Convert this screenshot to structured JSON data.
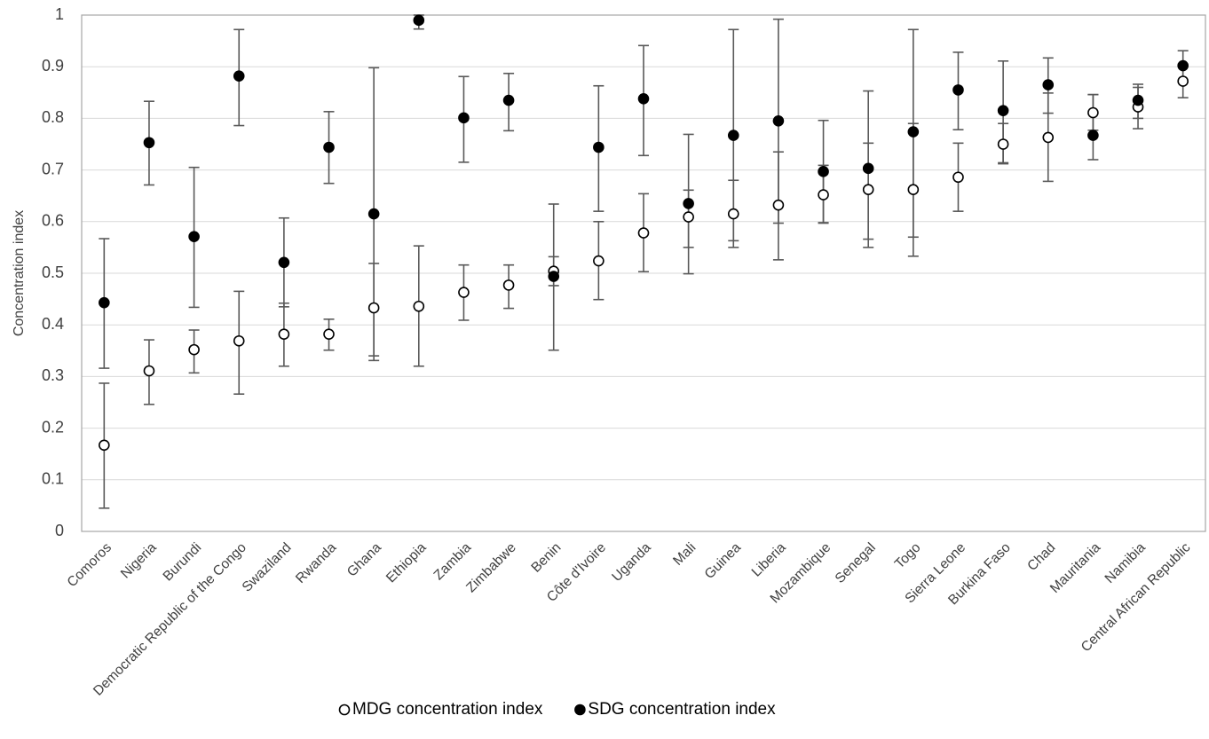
{
  "chart_data": {
    "type": "errorbar-dot",
    "y_label": "Concentration index",
    "categories": [
      "Comoros",
      "Nigeria",
      "Burundi",
      "Democratic Republic of the Congo",
      "Swaziland",
      "Rwanda",
      "Ghana",
      "Ethiopia",
      "Zambia",
      "Zimbabwe",
      "Benin",
      "Côte d'Ivoire",
      "Uganda",
      "Mali",
      "Guinea",
      "Liberia",
      "Mozambique",
      "Senegal",
      "Togo",
      "Sierra Leone",
      "Burkina Faso",
      "Chad",
      "Mauritania",
      "Namibia",
      "Central African Republic"
    ],
    "series": [
      {
        "name": "MDG concentration index",
        "color": "#000000",
        "marker_fill": "#ffffff",
        "values": [
          0.167,
          0.311,
          0.352,
          0.369,
          0.382,
          0.382,
          0.433,
          0.436,
          0.463,
          0.477,
          0.504,
          0.524,
          0.578,
          0.609,
          0.615,
          0.632,
          0.652,
          0.662,
          0.662,
          0.686,
          0.75,
          0.763,
          0.811,
          0.822,
          0.872
        ],
        "lower": [
          0.045,
          0.246,
          0.307,
          0.266,
          0.32,
          0.351,
          0.34,
          0.32,
          0.409,
          0.432,
          0.476,
          0.449,
          0.503,
          0.55,
          0.55,
          0.597,
          0.597,
          0.566,
          0.57,
          0.62,
          0.714,
          0.678,
          0.777,
          0.78,
          0.84
        ],
        "upper": [
          0.287,
          0.371,
          0.39,
          0.465,
          0.442,
          0.411,
          0.519,
          0.553,
          0.516,
          0.516,
          0.532,
          0.6,
          0.654,
          0.661,
          0.68,
          0.735,
          0.709,
          0.752,
          0.79,
          0.752,
          0.79,
          0.849,
          0.846,
          0.86,
          0.905
        ]
      },
      {
        "name": "SDG concentration index",
        "color": "#000000",
        "marker_fill": "#000000",
        "values": [
          0.443,
          0.753,
          0.571,
          0.882,
          0.521,
          0.744,
          0.615,
          0.99,
          0.801,
          0.835,
          0.494,
          0.744,
          0.838,
          0.635,
          0.767,
          0.795,
          0.697,
          0.703,
          0.774,
          0.855,
          0.815,
          0.865,
          0.767,
          0.835,
          0.902
        ],
        "lower": [
          0.316,
          0.671,
          0.434,
          0.786,
          0.435,
          0.674,
          0.331,
          0.973,
          0.715,
          0.776,
          0.351,
          0.62,
          0.728,
          0.499,
          0.563,
          0.526,
          0.598,
          0.55,
          0.533,
          0.778,
          0.712,
          0.81,
          0.72,
          0.8,
          0.87
        ],
        "upper": [
          0.567,
          0.833,
          0.705,
          0.972,
          0.607,
          0.813,
          0.898,
          1.0,
          0.881,
          0.887,
          0.634,
          0.863,
          0.941,
          0.769,
          0.972,
          0.992,
          0.796,
          0.853,
          0.972,
          0.928,
          0.911,
          0.917,
          0.846,
          0.866,
          0.931
        ]
      }
    ],
    "ylim": [
      0,
      1
    ],
    "yticks": [
      0,
      0.1,
      0.2,
      0.3,
      0.4,
      0.5,
      0.6,
      0.7,
      0.8,
      0.9,
      1
    ],
    "grid": true,
    "error_bar_color": "#595959",
    "legend": "bottom"
  }
}
